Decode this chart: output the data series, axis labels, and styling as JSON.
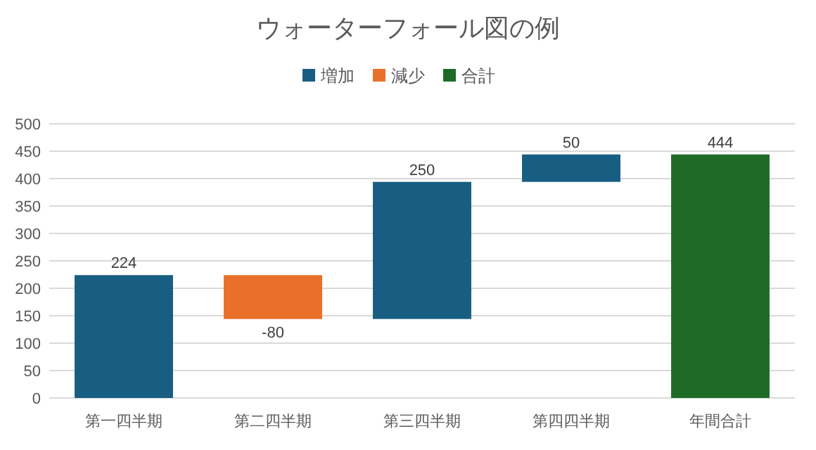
{
  "chart_data": {
    "type": "bar",
    "title": "ウォーターフォール図の例",
    "categories": [
      "第一四半期",
      "第二四半期",
      "第三四半期",
      "第四四半期",
      "年間合計"
    ],
    "series": [
      {
        "name": "増加",
        "color": "#175e82",
        "values": [
          224,
          null,
          250,
          50,
          null
        ],
        "base": [
          0,
          null,
          144,
          394,
          null
        ]
      },
      {
        "name": "減少",
        "color": "#e8702a",
        "values": [
          null,
          -80,
          null,
          null,
          null
        ],
        "base": [
          null,
          224,
          null,
          null,
          null
        ]
      },
      {
        "name": "合計",
        "color": "#1e6b28",
        "values": [
          null,
          null,
          null,
          null,
          444
        ],
        "base": [
          null,
          null,
          null,
          null,
          0
        ]
      }
    ],
    "ylim": [
      0,
      500
    ],
    "yticks": [
      0,
      50,
      100,
      150,
      200,
      250,
      300,
      350,
      400,
      450,
      500
    ],
    "grid": "y",
    "legend": "top",
    "data_labels": true
  }
}
